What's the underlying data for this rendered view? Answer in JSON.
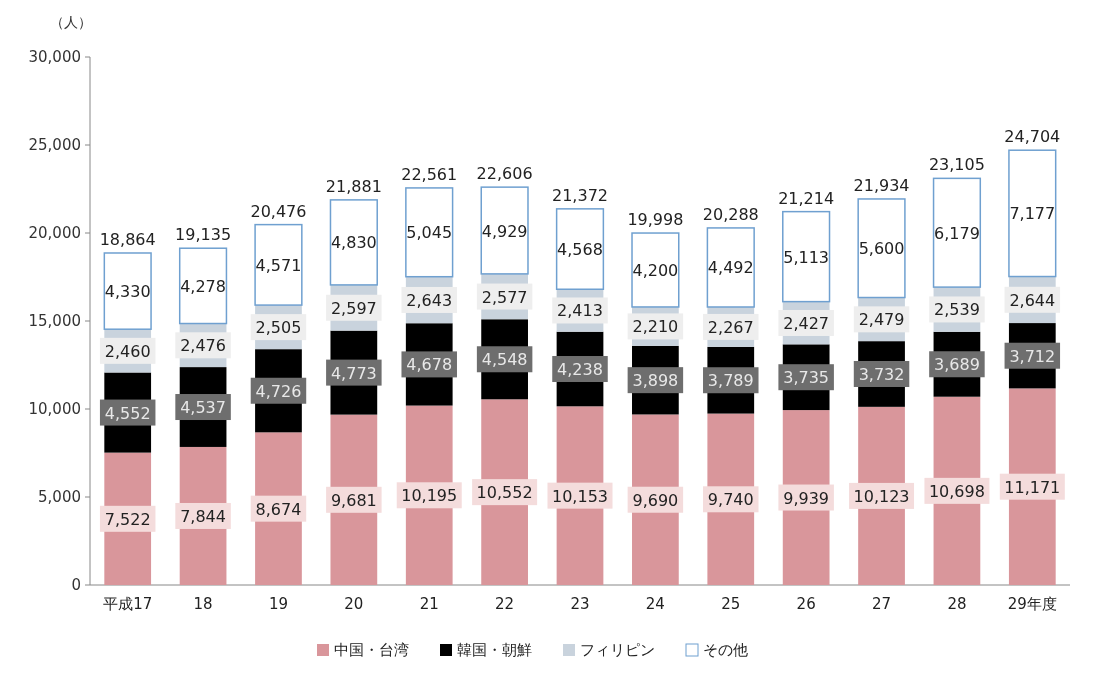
{
  "chart_data": {
    "type": "bar",
    "stacked": true,
    "ylabel": "（人）",
    "categories": [
      "平成17",
      "18",
      "19",
      "20",
      "21",
      "22",
      "23",
      "24",
      "25",
      "26",
      "27",
      "28",
      "29年度"
    ],
    "series": [
      {
        "name": "中国・台湾",
        "color": "#d9969b",
        "values": [
          7522,
          7844,
          8674,
          9681,
          10195,
          10552,
          10153,
          9690,
          9740,
          9939,
          10123,
          10698,
          11171
        ],
        "value_labels": [
          "7,522",
          "7,844",
          "8,674",
          "9,681",
          "10,195",
          "10,552",
          "10,153",
          "9,690",
          "9,740",
          "9,939",
          "10,123",
          "10,698",
          "11,171"
        ]
      },
      {
        "name": "韓国・朝鮮",
        "color": "#000000",
        "values": [
          4552,
          4537,
          4726,
          4773,
          4678,
          4548,
          4238,
          3898,
          3789,
          3735,
          3732,
          3689,
          3712
        ],
        "value_labels": [
          "4,552",
          "4,537",
          "4,726",
          "4,773",
          "4,678",
          "4,548",
          "4,238",
          "3,898",
          "3,789",
          "3,735",
          "3,732",
          "3,689",
          "3,712"
        ]
      },
      {
        "name": "フィリピン",
        "color": "#c9d3dd",
        "values": [
          2460,
          2476,
          2505,
          2597,
          2643,
          2577,
          2413,
          2210,
          2267,
          2427,
          2479,
          2539,
          2644
        ],
        "value_labels": [
          "2,460",
          "2,476",
          "2,505",
          "2,597",
          "2,643",
          "2,577",
          "2,413",
          "2,210",
          "2,267",
          "2,427",
          "2,479",
          "2,539",
          "2,644"
        ]
      },
      {
        "name": "その他",
        "color": "#ffffff",
        "values": [
          4330,
          4278,
          4571,
          4830,
          5045,
          4929,
          4568,
          4200,
          4492,
          5113,
          5600,
          6179,
          7177
        ],
        "value_labels": [
          "4,330",
          "4,278",
          "4,571",
          "4,830",
          "5,045",
          "4,929",
          "4,568",
          "4,200",
          "4,492",
          "5,113",
          "5,600",
          "6,179",
          "7,177"
        ]
      }
    ],
    "totals": [
      "18,864",
      "19,135",
      "20,476",
      "21,881",
      "22,561",
      "22,606",
      "21,372",
      "19,998",
      "20,288",
      "21,214",
      "21,934",
      "23,105",
      "24,704"
    ],
    "ylim": [
      0,
      30000
    ],
    "yticks": [
      0,
      {
        "value": 5000,
        "label": "5,000"
      },
      {
        "value": 10000,
        "label": "10,000"
      },
      {
        "value": 15000,
        "label": "15,000"
      },
      {
        "value": 20000,
        "label": "20,000"
      },
      {
        "value": 25000,
        "label": "25,000"
      },
      {
        "value": 30000,
        "label": "30,000"
      }
    ],
    "legend": "bottom"
  }
}
